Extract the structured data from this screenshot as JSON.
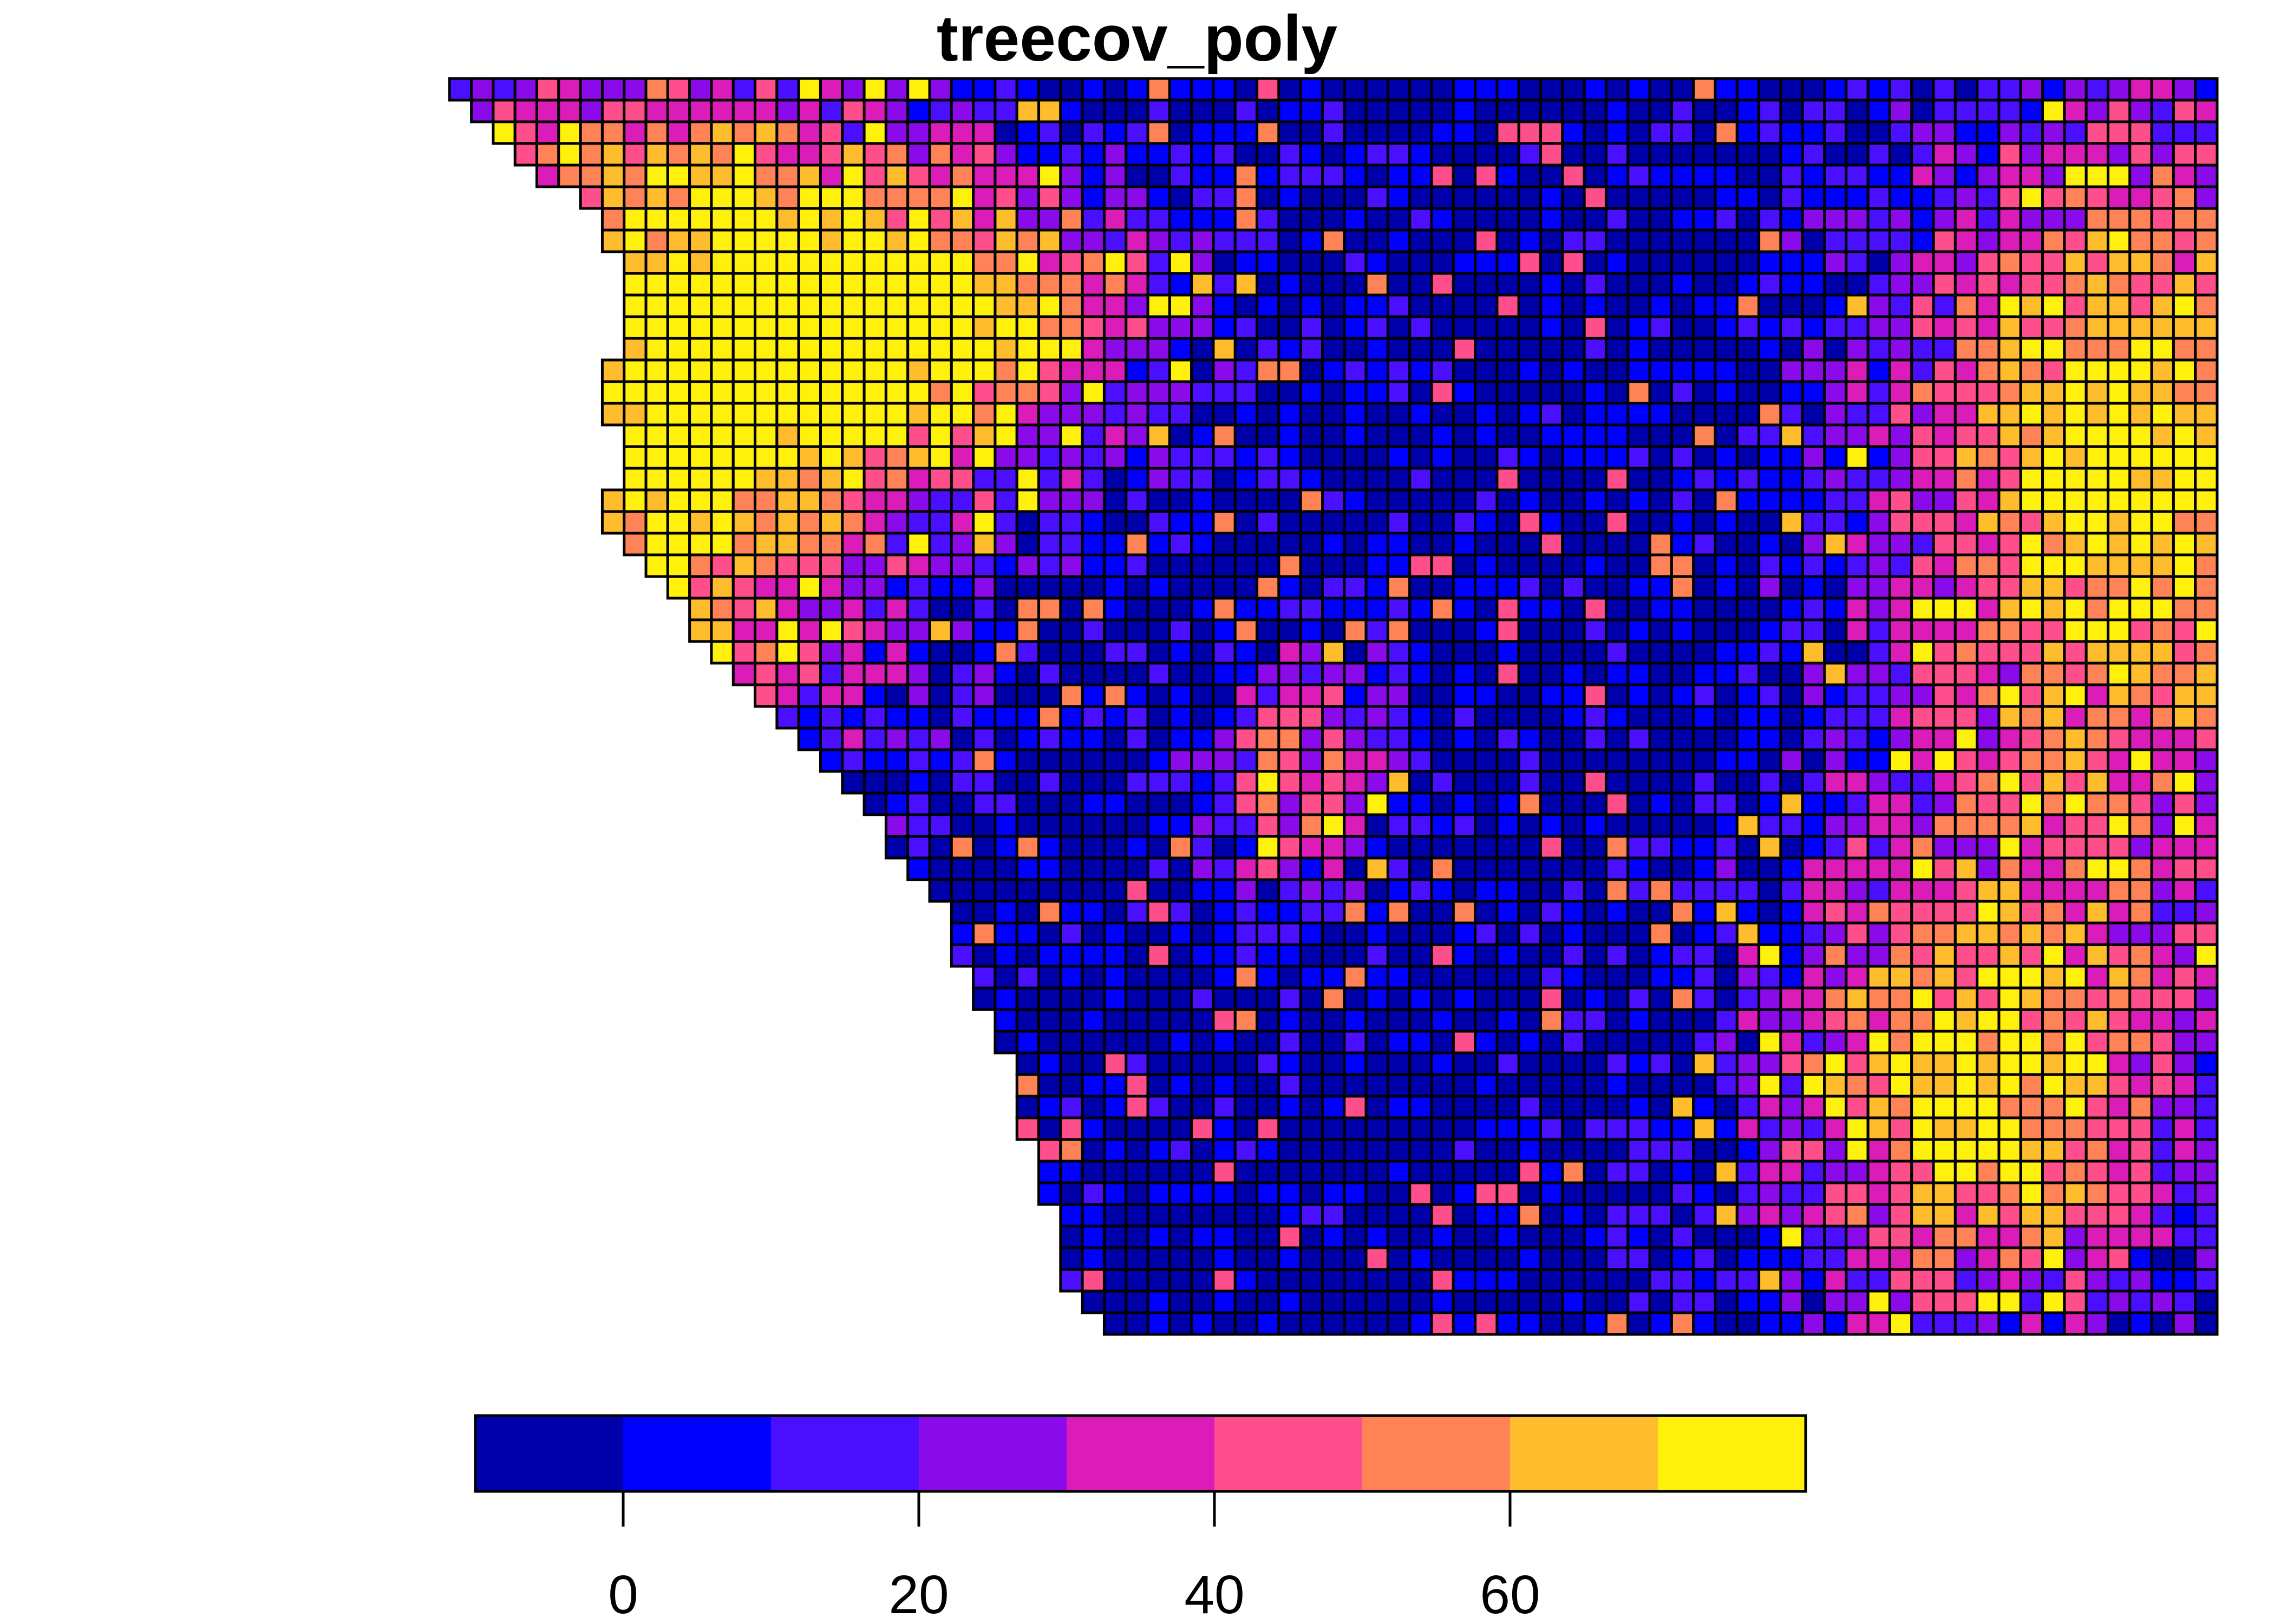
{
  "chart_data": {
    "type": "heatmap",
    "title": "treecov_poly",
    "layer_name": "treecov_poly",
    "grid_on": true,
    "legend": {
      "placement": "bottom",
      "breaks": [
        -10,
        0,
        10,
        20,
        30,
        40,
        50,
        60,
        70,
        80
      ],
      "colors": [
        "#0000AA",
        "#0000FF",
        "#4B0FFF",
        "#8B0AE9",
        "#DC1CB8",
        "#FF4E8C",
        "#FF8357",
        "#FFBC2C",
        "#FFF10C"
      ],
      "tick_values": [
        0,
        20,
        40,
        60
      ],
      "tick_labels": [
        "0",
        "20",
        "40",
        "60"
      ]
    },
    "value_range": [
      -10,
      80
    ],
    "grid_rows": 58,
    "grid_cols": 82,
    "row_strings": [
      "LXXXXXXXXXXXXXXXXXXXXXXXXXXXXXXXXXXXXXXXXXXXXXXXXXXXXXXXXXXXXXXXXXXXXXXXXXXXXXXXXX",
      "LLXXXXXXXXXXXXXXXXXXXXXXXXXXXXXXXXXXXXXXXXXXXXXXXXXXXXXXXXXXXXXXXXXXXXXXXXXXXXXXXX",
      "LLLXXXXXXXXXXXXXXXXXXXXXXXXXXXXXXXXXXXXXXXXXXXXXXXXXXXXXXXXXXXXXXXXXXXXXXXXXXXXXXX",
      "LLLLXXXXXXXXXXXXXXXXXXXXXXXXXXXXXXXXXXXXXXXXXXXXXXXXXXXXXXXXXXXXXXXXXXXXXXXXXXXXXX",
      "LLLLLXXXXXXXXXXXXXXXXXXXXXXXXXXXXXXXXXXXXXXXXXXXXXXXXXXXXXXXXXXXXXXXXXXXXXXXXXXXXX",
      "LLLLLLLXXXXXXXXXXXXXXXXXXXXXXXXXXXXXXXXXXXXXXXXXXXXXXXXXXXXXXXXXXXXXXXXXXXXXXXXXXX",
      "LLLLLLLLXXXXXXXXXXXXXXXXXXXXXXXXXXXXXXXXXXXXXXXXXXXXXXXXXXXXXXXXXXXXXXXXXXXXXXXXXX",
      "LLLLLLLLXXXXXXXXXXXXXXXXXXXXXXXXXXXXXXXXXXXXXXXXXXXXXXXXXXXXXXXXXXXXXXXXXXXXXXXXXX",
      "LLLLLLLLLXXXXXXXXXXXXXXXXXXXXXXXXXXXXXXXXXXXXXXXXXXXXXXXXXXXXXXXXXXXXXXXXXXXXXXXXX",
      "LLLLLLLLLXXXXXXXXXXXXXXXXXXXXXXXXXXXXXXXXXXXXXXXXXXXXXXXXXXXXXXXXXXXXXXXXXXXXXXXXX",
      "LLLLLLLLLXXXXXXXXXXXXXXXXXXXXXXXXXXXXXXXXXXXXXXXXXXXXXXXXXXXXXXXXXXXXXXXXXXXXXXXXX",
      "LLLLLLLLLXXXXXXXXXXXXXXXXXXXXXXXXXXXXXXXXXXXXXXXXXXXXXXXXXXXXXXXXXXXXXXXXXXXXXXXXX",
      "LLLLLLLLLXXXXXXXXXXXXXXXXXXXXXXXXXXXXXXXXXXXXXXXXXXXXXXXXXXXXXXXXXXXXXXXXXXXXXXXXX",
      "LLLLLLLLXXXXXXXXXXXXXXXXXXXXXXXXXXXXXXXXXXXXXXXXXXXXXXXXXXXXXXXXXXXXXXXXXXXXXXXXXX",
      "LLLLLLLLXXXXXXXXXXXXXXXXXXXXXXXXXXXXXXXXXXXXXXXXXXXXXXXXXXXXXXXXXXXXXXXXXXXXXXXXXX",
      "LLLLLLLLXXXXXXXXXXXXXXXXXXXXXXXXXXXXXXXXXXXXXXXXXXXXXXXXXXXXXXXXXXXXXXXXXXXXXXXXXX",
      "LLLLLLLLLXXXXXXXXXXXXXXXXXXXXXXXXXXXXXXXXXXXXXXXXXXXXXXXXXXXXXXXXXXXXXXXXXXXXXXXXX",
      "LLLLLLLLLXXXXXXXXXXXXXXXXXXXXXXXXXXXXXXXXXXXXXXXXXXXXXXXXXXXXXXXXXXXXXXXXXXXXXXXXX",
      "LLLLLLLLLXXXXXXXXXXXXXXXXXXXXXXXXXXXXXXXXXXXXXXXXXXXXXXXXXXXXXXXXXXXXXXXXXXXXXXXXX",
      "LLLLLLLLXXXXXXXXXXXXXXXXXXXXXXXXXXXXXXXXXXXXXXXXXXXXXXXXXXXXXXXXXXXXXXXXXXXXXXXXXX",
      "LLLLLLLLXXXXXXXXXXXXXXXXXXXXXXXXXXXXXXXXXXXXXXXXXXXXXXXXXXXXXXXXXXXXXXXXXXXXXXXXXX",
      "LLLLLLLLLXXXXXXXXXXXXXXXXXXXXXXXXXXXXXXXXXXXXXXXXXXXXXXXXXXXXXXXXXXXXXXXXXXXXXXXXX",
      "LLLLLLLLLLXXXXXXXXXXXXXXXXXXXXXXXXXXXXXXXXXXXXXXXXXXXXXXXXXXXXXXXXXXXXXXXXXXXXXXXX",
      "LLLLLLLLLLLXXXXXXXXXXXXXXXXXXXXXXXXXXXXXXXXXXXXXXXXXXXXXXXXXXXXXXXXXXXXXXXXXXXXXXX",
      "LLLLLLLLLLLLXXXXXXXXXXXXXXXXXXXXXXXXXXXXXXXXXXXXXXXXXXXXXXXXXXXXXXXXXXXXXXXXXXXXXX",
      "LLLLLLLLLLLLXXXXXXXXXXXXXXXXXXXXXXXXXXXXXXXXXXXXXXXXXXXXXXXXXXXXXXXXXXXXXXXXXXXXXX",
      "LLLLLLLLLLLLLXXXXXXXXXXXXXXXXXXXXXXXXXXXXXXXXXXXXXXXXXXXXXXXXXXXXXXXXXXXXXXXXXXXXX",
      "LLLLLLLLLLLLLLXXXXXXXXXXXXXXXXXXXXXXXXXXXXXXXXXXXXXXXXXXXXXXXXXXXXXXXXXXXXXXXXXXXX",
      "LLLLLLLLLLLLLLLXXXXXXXXXXXXXXXXXXXXXXXXXXXXXXXXXXXXXXXXXXXXXXXXXXXXXXXXXXXXXXXXXXX",
      "LLLLLLLLLLLLLLLLXXXXXXXXXXXXXXXXXXXXXXXXXXXXXXXXXXXXXXXXXXXXXXXXXXXXXXXXXXXXXXXXXX",
      "LLLLLLLLLLLLLLLLLXXXXXXXXXXXXXXXXXXXXXXXXXXXXXXXXXXXXXXXXXXXXXXXXXXXXXXXXXXXXXXXXX",
      "LLLLLLLLLLLLLLLLLLXXXXXXXXXXXXXXXXXXXXXXXXXXXXXXXXXXXXXXXXXXXXXXXXXXXXXXXXXXXXXXXX",
      "LLLLLLLLLLLLLLLLLLLXXXXXXXXXXXXXXXXXXXXXXXXXXXXXXXXXXXXXXXXXXXXXXXXXXXXXXXXXXXXXXX",
      "LLLLLLLLLLLLLLLLLLLLXXXXXXXXXXXXXXXXXXXXXXXXXXXXXXXXXXXXXXXXXXXXXXXXXXXXXXXXXXXXXX",
      "LLLLLLLLLLLLLLLLLLLLLXXXXXXXXXXXXXXXXXXXXXXXXXXXXXXXXXXXXXXXXXXXXXXXXXXXXXXXXXXXXX",
      "LLLLLLLLLLLLLLLLLLLLLXXXXXXXXXXXXXXXXXXXXXXXXXXXXXXXXXXXXXXXXXXXXXXXXXXXXXXXXXXXXX",
      "LLLLLLLLLLLLLLLLLLLLLLXXXXXXXXXXXXXXXXXXXXXXXXXXXXXXXXXXXXXXXXXXXXXXXXXXXXXXXXXXXX",
      "LLLLLLLLLLLLLLLLLLLLLLLXXXXXXXXXXXXXXXXXXXXXXXXXXXXXXXXXXXXXXXXXXXXXXXXXXXXXXXXXXX",
      "LLLLLLLLLLLLLLLLLLLLLLLLXXXXXXXXXXXXXXXXXXXXXXXXXXXXXXXXXXXXXXXXXXXXXXXXXXXXXXXXXX",
      "LLLLLLLLLLLLLLLLLLLLLLLLXXXXXXXXXXXXXXXXXXXXXXXXXXXXXXXXXXXXXXXXXXXXXXXXXXXXXXXXXX",
      "LLLLLLLLLLLLLLLLLLLLLLLLXXXXXXXXXXXXXXXXXXXXXXXXXXXXXXXXXXXXXXXXXXXXXXXXXXXXXXXXXX",
      "LLLLLLLLLLLLLLLLLLLLLLLLLXXXXXXXXXXXXXXXXXXXXXXXXXXXXXXXXXXXXXXXXXXXXXXXXXXXXXXXXX",
      "LLLLLLLLLLLLLLLLLLLLLLLLLXXXXXXXXXXXXXXXXXXXXXXXXXXXXXXXXXXXXXXXXXXXXXXXXXXXXXXXXX",
      "LLLLLLLLLLLLLLLLLLLLLLLLLLXXXXXXXXXXXXXXXXXXXXXXXXXXXXXXXXXXXXXXXXXXXXXXXXXXXXXXXX",
      "LLLLLLLLLLLLLLLLLLLLLLLLLLXXXXXXXXXXXXXXXXXXXXXXXXXXXXXXXXXXXXXXXXXXXXXXXXXXXXXXXX",
      "LLLLLLLLLLLLLLLLLLLLLLLLLLLXXXXXXXXXXXXXXXXXXXXXXXXXXXXXXXXXXXXXXXXXXXXXXXXXXXXXXX",
      "LLLLLLLLLLLLLLLLLLLLLLLLLLLXXXXXXXXXXXXXXXXXXXXXXXXXXXXXXXXXXXXXXXXXXXXXXXXXXXXXXX",
      "LLLLLLLLLLLLLLLLLLLLLLLLLLLXXXXXXXXXXXXXXXXXXXXXXXXXXXXXXXXXXXXXXXXXXXXXXXXXXXXXXX",
      "LLLLLLLLLLLLLLLLLLLLLLLLLLLXXXXXXXXXXXXXXXXXXXXXXXXXXXXXXXXXXXXXXXXXXXXXXXXXXXXXXX",
      "LLLLLLLLLLLLLLLLLLLLLLLLLLLLXXXXXXXXXXXXXXXXXXXXXXXXXXXXXXXXXXXXXXXXXXXXXXXXXXXXXX",
      "LLLLLLLLLLLLLLLLLLLLLLLLLLLLXXXXXXXXXXXXXXXXXXXXXXXXXXXXXXXXXXXXXXXXXXXXXXXXXXXXXX",
      "LLLLLLLLLLLLLLLLLLLLLLLLLLLLXXXXXXXXXXXXXXXXXXXXXXXXXXXXXXXXXXXXXXXXXXXXXXXXXXXXXX",
      "LLLLLLLLLLLLLLLLLLLLLLLLLLLLLXXXXXXXXXXXXXXXXXXXXXXXXXXXXXXXXXXXXXXXXXXXXXXXXXXXXX",
      "LLLLLLLLLLLLLLLLLLLLLLLLLLLLLXXXXXXXXXXXXXXXXXXXXXXXXXXXXXXXXXXXXXXXXXXXXXXXXXXXXX",
      "LLLLLLLLLLLLLLLLLLLLLLLLLLLLLXXXXXXXXXXXXXXXXXXXXXXXXXXXXXXXXXXXXXXXXXXXXXXXXXXXXX",
      "LLLLLLLLLLLLLLLLLLLLLLLLLLLLLXXXXXXXXXXXXXXXXXXXXXXXXXXXXXXXXXXXXXXXXXXXXXXXXXXXXX",
      "LLLLLLLLLLLLLLLLLLLLLLLLLLLLLLXXXXXXXXXXXXXXXXXXXXXXXXXXXXXXXXXXXXXXXXXXXXXXXXXXXX",
      "LLLLLLLLLLLLLLLLLLLLLLLLLLLLLLLXXXXXXXXXXXXXXXXXXXXXXXXXXXXXXXXXXXXXXXXXXXXXXXXXXX"
    ]
  }
}
